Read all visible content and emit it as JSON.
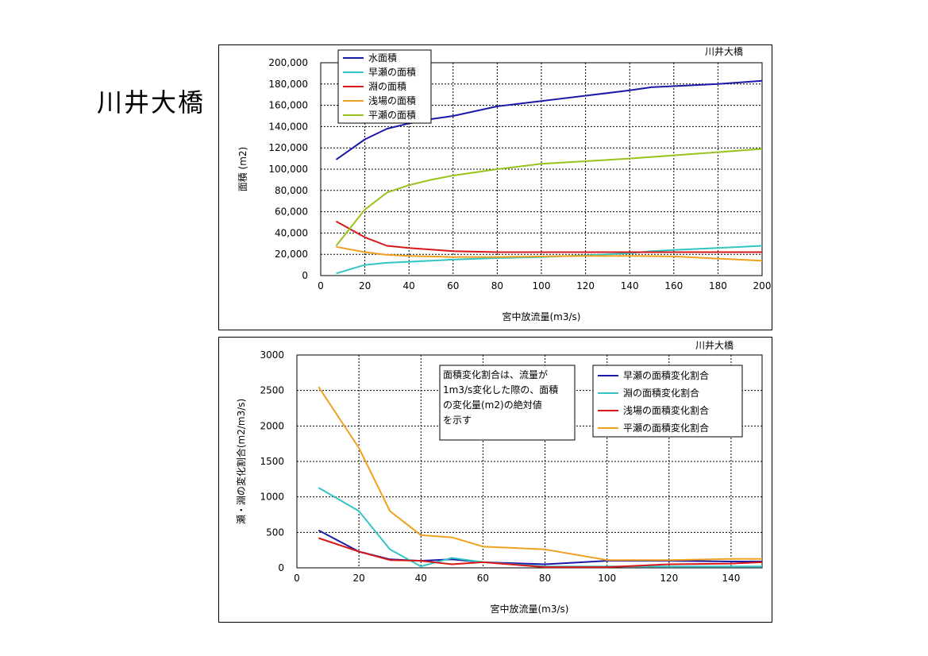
{
  "page": {
    "title": "川井大橋"
  },
  "chart_data": [
    {
      "type": "line",
      "corner_label": "川井大橋",
      "xlabel": "宮中放流量(m3/s)",
      "ylabel": "面積 (m2)",
      "xlim": [
        0,
        200
      ],
      "ylim": [
        0,
        200000
      ],
      "xticks": [
        "0",
        "20",
        "40",
        "60",
        "80",
        "100",
        "120",
        "140",
        "160",
        "180",
        "200"
      ],
      "yticks": [
        "0",
        "20,000",
        "40,000",
        "60,000",
        "80,000",
        "100,000",
        "120,000",
        "140,000",
        "160,000",
        "180,000",
        "200,000"
      ],
      "grid": true,
      "legend_position": "top-left",
      "series": [
        {
          "name": "水面積",
          "color": "#1a1aa8",
          "points": [
            [
              7,
              109000
            ],
            [
              20,
              128000
            ],
            [
              30,
              138000
            ],
            [
              40,
              143000
            ],
            [
              50,
              147000
            ],
            [
              60,
              150000
            ],
            [
              80,
              159000
            ],
            [
              100,
              164000
            ],
            [
              120,
              169000
            ],
            [
              140,
              174000
            ],
            [
              150,
              177000
            ],
            [
              160,
              178000
            ],
            [
              180,
              180000
            ],
            [
              200,
              183000
            ]
          ]
        },
        {
          "name": "早瀬の面積",
          "color": "#33c4c4",
          "points": [
            [
              7,
              2000
            ],
            [
              20,
              10000
            ],
            [
              30,
              12000
            ],
            [
              40,
              13000
            ],
            [
              50,
              14000
            ],
            [
              60,
              15000
            ],
            [
              80,
              16500
            ],
            [
              100,
              17500
            ],
            [
              120,
              19000
            ],
            [
              140,
              21000
            ],
            [
              150,
              23000
            ],
            [
              160,
              24000
            ],
            [
              180,
              26000
            ],
            [
              200,
              28000
            ]
          ]
        },
        {
          "name": "淵の面積",
          "color": "#d81818",
          "points": [
            [
              7,
              51000
            ],
            [
              20,
              36000
            ],
            [
              30,
              28000
            ],
            [
              40,
              26000
            ],
            [
              50,
              24500
            ],
            [
              60,
              23000
            ],
            [
              80,
              22000
            ],
            [
              100,
              22000
            ],
            [
              120,
              22000
            ],
            [
              140,
              22000
            ],
            [
              160,
              22000
            ],
            [
              180,
              22000
            ],
            [
              200,
              22000
            ]
          ]
        },
        {
          "name": "浅場の面積",
          "color": "#f0a020",
          "points": [
            [
              7,
              27000
            ],
            [
              20,
              22000
            ],
            [
              30,
              19500
            ],
            [
              40,
              18500
            ],
            [
              50,
              18000
            ],
            [
              60,
              17500
            ],
            [
              80,
              17500
            ],
            [
              100,
              18000
            ],
            [
              120,
              18500
            ],
            [
              140,
              18500
            ],
            [
              160,
              18000
            ],
            [
              180,
              16000
            ],
            [
              200,
              14000
            ]
          ]
        },
        {
          "name": "平瀬の面積",
          "color": "#99c21c",
          "points": [
            [
              7,
              28000
            ],
            [
              20,
              62000
            ],
            [
              30,
              78000
            ],
            [
              40,
              85000
            ],
            [
              50,
              90000
            ],
            [
              60,
              94000
            ],
            [
              80,
              100000
            ],
            [
              100,
              105000
            ],
            [
              120,
              107500
            ],
            [
              140,
              110000
            ],
            [
              160,
              113000
            ],
            [
              180,
              116000
            ],
            [
              200,
              119000
            ]
          ]
        }
      ]
    },
    {
      "type": "line",
      "corner_label": "川井大橋",
      "xlabel": "宮中放流量(m3/s)",
      "ylabel": "瀬・淵の変化割合(m2/m3/s)",
      "xlim": [
        0,
        150
      ],
      "ylim": [
        0,
        3000
      ],
      "xticks": [
        "0",
        "20",
        "40",
        "60",
        "80",
        "100",
        "120",
        "140"
      ],
      "yticks": [
        "0",
        "500",
        "1000",
        "1500",
        "2000",
        "2500",
        "3000"
      ],
      "grid": true,
      "note": "面積変化割合は、流量が1m3/s変化した際の、面積の変化量(m2)の絶対値を示す",
      "legend_position": "top-right",
      "series": [
        {
          "name": "早瀬の面積変化割合",
          "color": "#1a1aa8",
          "points": [
            [
              7,
              530
            ],
            [
              20,
              230
            ],
            [
              30,
              120
            ],
            [
              40,
              100
            ],
            [
              50,
              120
            ],
            [
              60,
              80
            ],
            [
              80,
              50
            ],
            [
              100,
              100
            ],
            [
              120,
              100
            ],
            [
              140,
              90
            ],
            [
              150,
              90
            ]
          ]
        },
        {
          "name": "淵の面積変化割合",
          "color": "#33c4c4",
          "points": [
            [
              7,
              1130
            ],
            [
              20,
              800
            ],
            [
              30,
              260
            ],
            [
              40,
              20
            ],
            [
              50,
              140
            ],
            [
              60,
              80
            ],
            [
              80,
              20
            ],
            [
              100,
              20
            ],
            [
              120,
              20
            ],
            [
              140,
              20
            ],
            [
              150,
              20
            ]
          ]
        },
        {
          "name": "浅場の面積変化割合",
          "color": "#d81818",
          "points": [
            [
              7,
              420
            ],
            [
              20,
              230
            ],
            [
              30,
              110
            ],
            [
              40,
              100
            ],
            [
              50,
              50
            ],
            [
              60,
              80
            ],
            [
              80,
              10
            ],
            [
              100,
              10
            ],
            [
              120,
              50
            ],
            [
              140,
              60
            ],
            [
              150,
              80
            ]
          ]
        },
        {
          "name": "平瀬の面積変化割合",
          "color": "#f0a020",
          "points": [
            [
              7,
              2550
            ],
            [
              20,
              1690
            ],
            [
              30,
              800
            ],
            [
              40,
              460
            ],
            [
              50,
              430
            ],
            [
              60,
              300
            ],
            [
              80,
              260
            ],
            [
              100,
              110
            ],
            [
              120,
              110
            ],
            [
              140,
              125
            ],
            [
              150,
              125
            ]
          ]
        }
      ]
    }
  ]
}
